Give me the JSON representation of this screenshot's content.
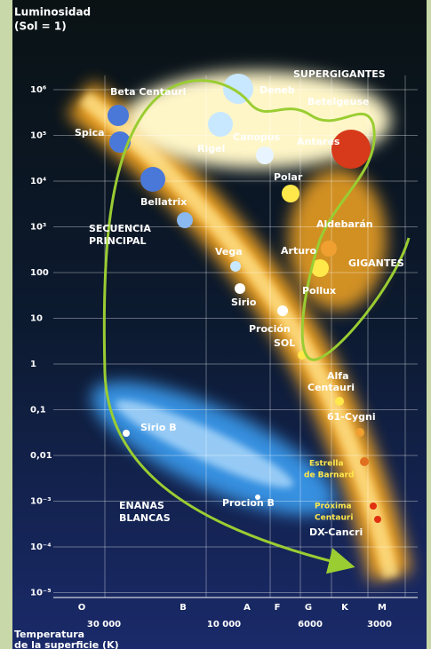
{
  "title": [
    "Luminosidad",
    "(Sol = 1)"
  ],
  "y_axis": {
    "labels": [
      "10⁶",
      "10⁵",
      "10⁴",
      "10³",
      "100",
      "10",
      "1",
      "0,1",
      "0,01",
      "10⁻³",
      "10⁻⁴",
      "10⁻⁵"
    ]
  },
  "x_axis": {
    "classes": [
      "O",
      "B",
      "A",
      "F",
      "G",
      "K",
      "M"
    ],
    "temperatures": [
      "30 000",
      "10 000",
      "6000",
      "3000"
    ],
    "title": [
      "Temperatura",
      "de la superficie (K)"
    ]
  },
  "labels": [
    "SUPERGIGANTES",
    "Beta Centauri",
    "Deneb",
    "Betelgeuse",
    "Spica",
    "Rigel",
    "Canopus",
    "Antares",
    "Polar",
    "Bellatrix",
    "SECUENCIA",
    "PRINCIPAL",
    "Aldebarán",
    "Arturo",
    "GIGANTES",
    "Vega",
    "Pollux",
    "Sirio",
    "Proción",
    "SOL",
    "Alfa",
    "Centauri",
    "61-Cygni",
    "Sirio B",
    "Estrella",
    "de Barnard",
    "ENANAS",
    "BLANCAS",
    "Procion B",
    "Próxima",
    "Centauri",
    "DX-Cancri"
  ]
}
